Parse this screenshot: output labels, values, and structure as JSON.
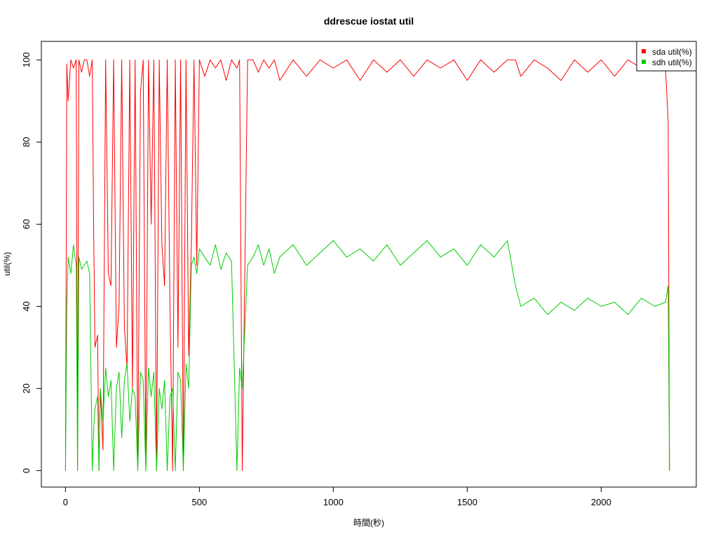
{
  "chart_data": {
    "type": "line",
    "title": "ddrescue iostat util",
    "xlabel": "時間(秒)",
    "ylabel": "util(%)",
    "xlim": [
      -90,
      2355
    ],
    "ylim": [
      -4,
      104.5
    ],
    "x_ticks": [
      0,
      500,
      1000,
      1500,
      2000
    ],
    "x_tick_labels": [
      "0",
      "500",
      "1000",
      "1500",
      "2000"
    ],
    "y_ticks": [
      0,
      20,
      40,
      60,
      80,
      100
    ],
    "y_tick_labels": [
      "0",
      "20",
      "40",
      "60",
      "80",
      "100"
    ],
    "grid": false,
    "legend": {
      "position": "top-right",
      "entries": [
        {
          "label": "sda util(%)",
          "color": "#ff0000"
        },
        {
          "label": "sdh util(%)",
          "color": "#00cd00"
        }
      ]
    },
    "series": [
      {
        "name": "sda util(%)",
        "color": "#ff0000",
        "x": [
          0,
          5,
          10,
          20,
          30,
          40,
          45,
          50,
          60,
          70,
          80,
          90,
          100,
          105,
          110,
          120,
          125,
          130,
          140,
          150,
          160,
          170,
          180,
          190,
          200,
          210,
          220,
          230,
          240,
          250,
          260,
          270,
          280,
          290,
          300,
          310,
          320,
          330,
          340,
          350,
          360,
          370,
          380,
          390,
          400,
          410,
          420,
          430,
          440,
          450,
          460,
          470,
          480,
          490,
          500,
          520,
          540,
          560,
          580,
          600,
          620,
          640,
          650,
          660,
          680,
          700,
          720,
          740,
          760,
          780,
          800,
          850,
          900,
          950,
          1000,
          1050,
          1100,
          1150,
          1200,
          1250,
          1300,
          1350,
          1400,
          1450,
          1500,
          1550,
          1600,
          1650,
          1680,
          1700,
          1750,
          1800,
          1850,
          1900,
          1950,
          2000,
          2050,
          2100,
          2150,
          2200,
          2240,
          2250,
          2255
        ],
        "values": [
          0,
          99,
          90,
          100,
          98,
          100,
          0,
          100,
          97,
          100,
          100,
          96,
          100,
          60,
          30,
          33,
          0,
          20,
          5,
          100,
          48,
          45,
          100,
          30,
          40,
          100,
          35,
          25,
          100,
          20,
          100,
          0,
          92,
          100,
          0,
          100,
          60,
          100,
          0,
          100,
          55,
          45,
          100,
          40,
          0,
          100,
          30,
          100,
          0,
          100,
          28,
          55,
          100,
          50,
          100,
          96,
          100,
          98,
          100,
          95,
          100,
          98,
          100,
          0,
          100,
          100,
          97,
          100,
          98,
          100,
          95,
          100,
          96,
          100,
          98,
          100,
          95,
          100,
          97,
          100,
          96,
          100,
          98,
          100,
          95,
          100,
          97,
          100,
          100,
          96,
          100,
          98,
          95,
          100,
          97,
          100,
          96,
          100,
          98,
          100,
          98,
          85,
          0
        ]
      },
      {
        "name": "sdh util(%)",
        "color": "#00cd00",
        "x": [
          0,
          5,
          10,
          20,
          30,
          40,
          45,
          50,
          60,
          70,
          80,
          90,
          100,
          105,
          110,
          120,
          125,
          130,
          140,
          150,
          160,
          170,
          180,
          190,
          200,
          210,
          220,
          230,
          240,
          250,
          260,
          270,
          280,
          290,
          300,
          310,
          320,
          330,
          340,
          350,
          360,
          370,
          380,
          390,
          400,
          410,
          420,
          430,
          440,
          450,
          460,
          470,
          480,
          490,
          500,
          520,
          540,
          560,
          580,
          600,
          620,
          640,
          650,
          660,
          680,
          700,
          720,
          740,
          760,
          780,
          800,
          850,
          900,
          950,
          1000,
          1050,
          1100,
          1150,
          1200,
          1250,
          1300,
          1350,
          1400,
          1450,
          1500,
          1550,
          1600,
          1650,
          1680,
          1700,
          1750,
          1800,
          1850,
          1900,
          1950,
          2000,
          2050,
          2100,
          2150,
          2200,
          2240,
          2250,
          2255
        ],
        "values": [
          0,
          40,
          52,
          48,
          55,
          50,
          0,
          52,
          49,
          50,
          51,
          48,
          0,
          10,
          15,
          18,
          0,
          20,
          12,
          25,
          18,
          22,
          0,
          20,
          24,
          8,
          22,
          26,
          12,
          20,
          18,
          0,
          24,
          22,
          0,
          25,
          18,
          24,
          0,
          20,
          15,
          22,
          0,
          18,
          20,
          0,
          24,
          22,
          0,
          26,
          20,
          50,
          52,
          48,
          54,
          52,
          50,
          55,
          49,
          53,
          51,
          0,
          25,
          20,
          50,
          52,
          55,
          50,
          54,
          48,
          52,
          55,
          50,
          53,
          56,
          52,
          54,
          51,
          55,
          50,
          53,
          56,
          52,
          54,
          50,
          55,
          52,
          56,
          45,
          40,
          42,
          38,
          41,
          39,
          42,
          40,
          41,
          38,
          42,
          40,
          41,
          45,
          0
        ]
      }
    ]
  }
}
